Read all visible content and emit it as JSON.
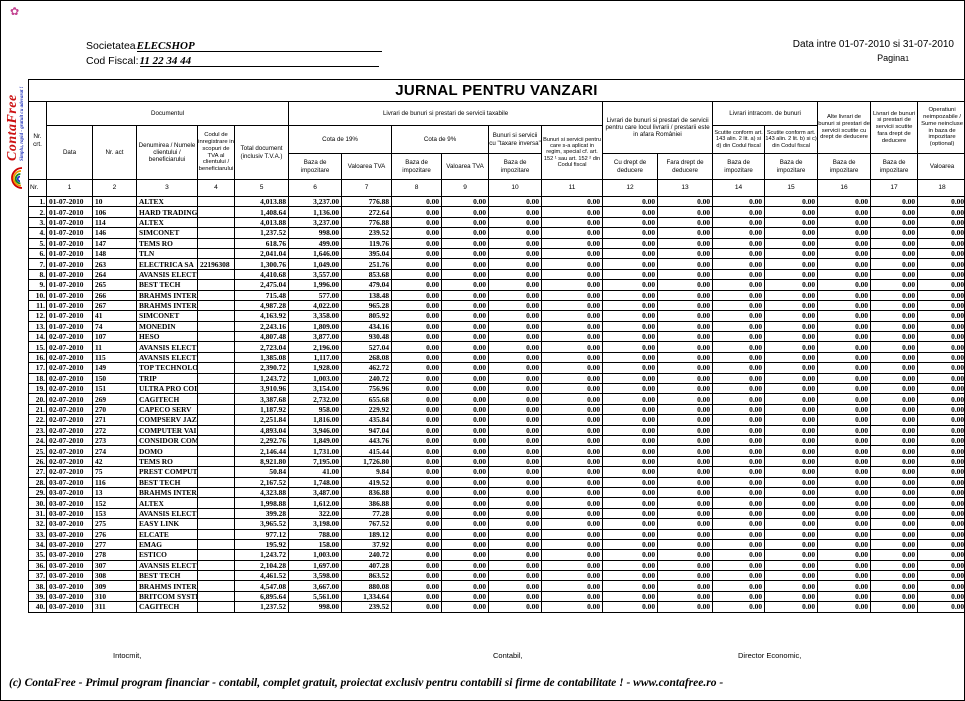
{
  "page": {
    "company_label": "Societatea",
    "company_value": "ELECSHOP",
    "fiscal_label": "Cod Fiscal:",
    "fiscal_value": "11 22 34 44",
    "date_range": "Data intre 01-07-2010 si 31-07-2010",
    "page_label": "Pagina",
    "page_number": "1",
    "title": "JURNAL PENTRU VANZARI"
  },
  "logo": {
    "name": "ContaFree",
    "tagline": "Simplu, rapid - gratuit cu adevarat !",
    "brand_color": "#cc1111",
    "tagline_color": "#2233bb",
    "rainbow_colors": [
      "#cc0000",
      "#ee9900",
      "#118822",
      "#2233cc"
    ],
    "bird_icon_color": "#c2408f"
  },
  "table": {
    "nr_crt": "Nr.\ncrt.",
    "numbering": [
      "Nr.",
      "1",
      "2",
      "3",
      "4",
      "5",
      "6",
      "7",
      "8",
      "9",
      "10",
      "11",
      "12",
      "13",
      "14",
      "15",
      "16",
      "17",
      "18"
    ],
    "groups": {
      "documentul": "Documentul",
      "taxabile": "Livrari de bunuri si prestari de servicii taxabile",
      "afara_romaniei": "Livrari de bunuri si prestari de servicii pentru care locul livrarii / prestarii este in afara României",
      "intracom": "Livrari intracom. de bunuri",
      "alte_livrari": "Alte livrari de bunuri si prestari de servicii scutite cu drept de deducere",
      "scutite_fara_drept": "Livrari de bunuri si prestari de servicii scutite fara drept de deducere",
      "operatiuni": "Operatiuni neimpozabile / Sume neincluse in baza de impozitare (optional)"
    },
    "cols": {
      "data": "Data",
      "nr_act": "Nr. act",
      "denumirea": "Denumirea / Numele clientului / beneficiarului",
      "codul": "Codul de inregistrare in scopuri de TVA al clientului / beneficiarului",
      "total": "Total document (inclusiv T.V.A.)",
      "cota19": "Cota de 19%",
      "cota9": "Cota de 9%",
      "taxare_inversa": "Bunuri si servicii cu \"taxare inversa\"",
      "regim_special": "Bunuri si servicii pentru care s-a aplicat in regim, special cf. art. 152 ¹ sau art. 152 ² din Codul fiscal",
      "cu_drept": "Cu drept de deducere",
      "fara_drept": "Fara drept de deducere",
      "scutite_ad": "Scutite conform art. 143 alin. 2 lit. a) si d) din Codul fiscal",
      "scutite_bc": "Scutite conform art. 143 alin. 2 lit. b) si c) din Codul fiscal",
      "baza": "Baza de impozitare",
      "valoarea_tva": "Valoarea TVA",
      "valoarea": "Valoarea"
    },
    "zero_fill": {
      "value": "0.00",
      "columns": 11
    },
    "rows": [
      [
        "1.",
        "01-07-2010",
        "10",
        "ALTEX",
        "",
        "4,013.88",
        "3,237.00",
        "776.88"
      ],
      [
        "2.",
        "01-07-2010",
        "106",
        "HARD TRADING",
        "",
        "1,408.64",
        "1,136.00",
        "272.64"
      ],
      [
        "3.",
        "01-07-2010",
        "114",
        "ALTEX",
        "",
        "4,013.88",
        "3,237.00",
        "776.88"
      ],
      [
        "4.",
        "01-07-2010",
        "146",
        "SIMCONET",
        "",
        "1,237.52",
        "998.00",
        "239.52"
      ],
      [
        "5.",
        "01-07-2010",
        "147",
        "TEMS RO",
        "",
        "618.76",
        "499.00",
        "119.76"
      ],
      [
        "6.",
        "01-07-2010",
        "148",
        "TLN",
        "",
        "2,041.04",
        "1,646.00",
        "395.04"
      ],
      [
        "7.",
        "01-07-2010",
        "263",
        "ELECTRICA SA",
        "22196308",
        "1,300.76",
        "1,049.00",
        "251.76"
      ],
      [
        "8.",
        "01-07-2010",
        "264",
        "AVANSIS ELECT",
        "",
        "4,410.68",
        "3,557.00",
        "853.68"
      ],
      [
        "9.",
        "01-07-2010",
        "265",
        "BEST TECH",
        "",
        "2,475.04",
        "1,996.00",
        "479.04"
      ],
      [
        "10.",
        "01-07-2010",
        "266",
        "BRAHMS INTER",
        "",
        "715.48",
        "577.00",
        "138.48"
      ],
      [
        "11.",
        "01-07-2010",
        "267",
        "BRAHMS INTER",
        "",
        "4,987.28",
        "4,022.00",
        "965.28"
      ],
      [
        "12.",
        "01-07-2010",
        "41",
        "SIMCONET",
        "",
        "4,163.92",
        "3,358.00",
        "805.92"
      ],
      [
        "13.",
        "01-07-2010",
        "74",
        "MONEDIN",
        "",
        "2,243.16",
        "1,809.00",
        "434.16"
      ],
      [
        "14.",
        "02-07-2010",
        "107",
        "HESO",
        "",
        "4,807.48",
        "3,877.00",
        "930.48"
      ],
      [
        "15.",
        "02-07-2010",
        "11",
        "AVANSIS ELECT",
        "",
        "2,723.04",
        "2,196.00",
        "527.04"
      ],
      [
        "16.",
        "02-07-2010",
        "115",
        "AVANSIS ELECT",
        "",
        "1,385.08",
        "1,117.00",
        "268.08"
      ],
      [
        "17.",
        "02-07-2010",
        "149",
        "TOP TECHNOLO",
        "",
        "2,390.72",
        "1,928.00",
        "462.72"
      ],
      [
        "18.",
        "02-07-2010",
        "150",
        "TRIP",
        "",
        "1,243.72",
        "1,003.00",
        "240.72"
      ],
      [
        "19.",
        "02-07-2010",
        "151",
        "ULTRA PRO COI",
        "",
        "3,910.96",
        "3,154.00",
        "756.96"
      ],
      [
        "20.",
        "02-07-2010",
        "269",
        "CAGITECH",
        "",
        "3,387.68",
        "2,732.00",
        "655.68"
      ],
      [
        "21.",
        "02-07-2010",
        "270",
        "CAPECO SERV",
        "",
        "1,187.92",
        "958.00",
        "229.92"
      ],
      [
        "22.",
        "02-07-2010",
        "271",
        "COMPSERV JAZ",
        "",
        "2,251.84",
        "1,816.00",
        "435.84"
      ],
      [
        "23.",
        "02-07-2010",
        "272",
        "COMPUTER VAI",
        "",
        "4,893.04",
        "3,946.00",
        "947.04"
      ],
      [
        "24.",
        "02-07-2010",
        "273",
        "CONSIDOR COM",
        "",
        "2,292.76",
        "1,849.00",
        "443.76"
      ],
      [
        "25.",
        "02-07-2010",
        "274",
        "DOMO",
        "",
        "2,146.44",
        "1,731.00",
        "415.44"
      ],
      [
        "26.",
        "02-07-2010",
        "42",
        "TEMS RO",
        "",
        "8,921.80",
        "7,195.00",
        "1,726.80"
      ],
      [
        "27.",
        "02-07-2010",
        "75",
        "PREST COMPUT",
        "",
        "50.84",
        "41.00",
        "9.84"
      ],
      [
        "28.",
        "03-07-2010",
        "116",
        "BEST TECH",
        "",
        "2,167.52",
        "1,748.00",
        "419.52"
      ],
      [
        "29.",
        "03-07-2010",
        "13",
        "BRAHMS INTER",
        "",
        "4,323.88",
        "3,487.00",
        "836.88"
      ],
      [
        "30.",
        "03-07-2010",
        "152",
        "ALTEX",
        "",
        "1,998.88",
        "1,612.00",
        "386.88"
      ],
      [
        "31.",
        "03-07-2010",
        "153",
        "AVANSIS ELECT",
        "",
        "399.28",
        "322.00",
        "77.28"
      ],
      [
        "32.",
        "03-07-2010",
        "275",
        "EASY LINK",
        "",
        "3,965.52",
        "3,198.00",
        "767.52"
      ],
      [
        "33.",
        "03-07-2010",
        "276",
        "ELCATE",
        "",
        "977.12",
        "788.00",
        "189.12"
      ],
      [
        "34.",
        "03-07-2010",
        "277",
        "EMAG",
        "",
        "195.92",
        "158.00",
        "37.92"
      ],
      [
        "35.",
        "03-07-2010",
        "278",
        "ESTICO",
        "",
        "1,243.72",
        "1,003.00",
        "240.72"
      ],
      [
        "36.",
        "03-07-2010",
        "307",
        "AVANSIS ELECT",
        "",
        "2,104.28",
        "1,697.00",
        "407.28"
      ],
      [
        "37.",
        "03-07-2010",
        "308",
        "BEST TECH",
        "",
        "4,461.52",
        "3,598.00",
        "863.52"
      ],
      [
        "38.",
        "03-07-2010",
        "309",
        "BRAHMS INTER",
        "",
        "4,547.08",
        "3,667.00",
        "880.08"
      ],
      [
        "39.",
        "03-07-2010",
        "310",
        "BRITCOM SYSTE",
        "",
        "6,895.64",
        "5,561.00",
        "1,334.64"
      ],
      [
        "40.",
        "03-07-2010",
        "311",
        "CAGITECH",
        "",
        "1,237.52",
        "998.00",
        "239.52"
      ]
    ]
  },
  "signatures": {
    "intocmit": "Intocmit,",
    "contabil": "Contabil,",
    "director": "Director Economic,"
  },
  "footer": "(c) ContaFree - Primul program financiar - contabil, complet gratuit, proiectat exclusiv pentru contabili si firme de contabilitate !  -  www.contafree.ro -"
}
